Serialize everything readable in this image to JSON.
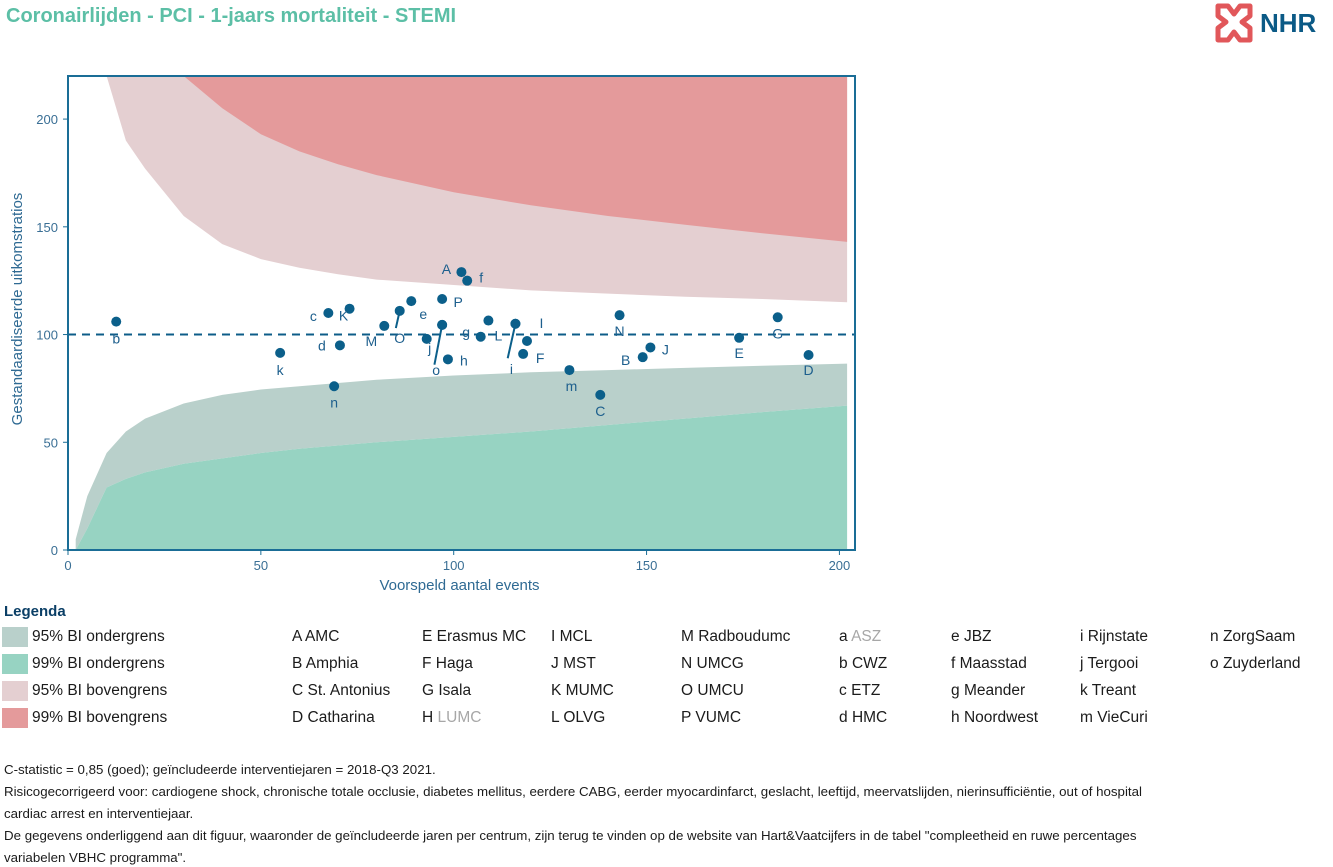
{
  "title": "Coronairlijden - PCI - 1-jaars mortaliteit - STEMI",
  "logo": {
    "text": "NHR",
    "icon": "nhr-cross-logo-icon",
    "color": "#e1575a"
  },
  "colors": {
    "ci95_lower": "#b9d0cb",
    "ci99_lower": "#97d3c2",
    "ci95_upper": "#e4cfd1",
    "ci99_upper": "#e49a9b",
    "points": "#0b5f8a",
    "axis": "#1a6d96",
    "title": "#5cbfa6"
  },
  "chart_data": {
    "type": "scatter",
    "xlabel": "Voorspeld aantal events",
    "ylabel": "Gestandaardiseerde uitkomstratios",
    "xlim": [
      0,
      202
    ],
    "ylim": [
      0,
      220
    ],
    "xticks": [
      0,
      50,
      100,
      150,
      200
    ],
    "yticks": [
      0,
      50,
      100,
      150,
      200
    ],
    "reference_line": 100,
    "bands": {
      "x": [
        2,
        5,
        10,
        15,
        20,
        30,
        40,
        50,
        60,
        70,
        80,
        100,
        120,
        140,
        160,
        180,
        202
      ],
      "ci95_lower": [
        5,
        25,
        45,
        55,
        61,
        68,
        72,
        74.5,
        76,
        77.5,
        79,
        81,
        82.5,
        83.5,
        84.5,
        85.5,
        86.5
      ],
      "ci99_lower": [
        0,
        10,
        29,
        33,
        36,
        40,
        42.5,
        45,
        47,
        48.5,
        50,
        52.5,
        55,
        58,
        61,
        64,
        67
      ],
      "ci95_upper": [
        220,
        220,
        220,
        190,
        177,
        155,
        142,
        135,
        131,
        128,
        125.5,
        123,
        120.5,
        119,
        117.5,
        116.5,
        115
      ],
      "ci99_upper": [
        null,
        null,
        null,
        null,
        null,
        220,
        205,
        193,
        185,
        179,
        174,
        166,
        160,
        155,
        151,
        147,
        143
      ]
    },
    "points": [
      {
        "label": "A",
        "x": 102,
        "y": 129,
        "lx": -15,
        "ly": 2
      },
      {
        "label": "f",
        "x": 103.5,
        "y": 125,
        "lx": 14,
        "ly": 2
      },
      {
        "label": "P",
        "x": 97,
        "y": 116.5,
        "lx": 16,
        "ly": 8
      },
      {
        "label": "e",
        "x": 89,
        "y": 115.5,
        "lx": 12,
        "ly": 18
      },
      {
        "label": "K",
        "x": 73,
        "y": 112,
        "lx": -6,
        "ly": 12
      },
      {
        "label": "c",
        "x": 67.5,
        "y": 110,
        "lx": -15,
        "ly": 8
      },
      {
        "label": "b",
        "x": 12.5,
        "y": 106,
        "lx": 0,
        "ly": 22
      },
      {
        "label": "O",
        "x": 86,
        "y": 111,
        "lx": 0,
        "ly": 32,
        "leader": [
          85,
          103
        ]
      },
      {
        "label": "M",
        "x": 82,
        "y": 104,
        "lx": -13,
        "ly": 20
      },
      {
        "label": "N",
        "x": 143,
        "y": 109,
        "lx": 0,
        "ly": 21
      },
      {
        "label": "G",
        "x": 184,
        "y": 108,
        "lx": 0,
        "ly": 21
      },
      {
        "label": "g",
        "x": 97,
        "y": 104.5,
        "lx": 24,
        "ly": 12
      },
      {
        "label": "j",
        "x": 93,
        "y": 98,
        "lx": 3,
        "ly": 14
      },
      {
        "label": "o",
        "x": 97,
        "y": 104.5,
        "lx": -6,
        "ly": 50,
        "leader": [
          95,
          86
        ]
      },
      {
        "label": "L",
        "x": 109,
        "y": 106.5,
        "lx": 10,
        "ly": 20
      },
      {
        "label": "l",
        "x": 107,
        "y": 99,
        "lx": 0,
        "ly": 0,
        "hidden_label": true
      },
      {
        "label": "I",
        "x": 116,
        "y": 105,
        "lx": 26,
        "ly": 4
      },
      {
        "label": "i",
        "x": 116,
        "y": 105,
        "lx": -4,
        "ly": 50,
        "leader": [
          114,
          89
        ]
      },
      {
        "label": "d",
        "x": 70.5,
        "y": 95,
        "lx": -18,
        "ly": 5
      },
      {
        "label": "F",
        "x": 118,
        "y": 91,
        "lx": 17,
        "ly": 9
      },
      {
        "label": "h",
        "x": 98.5,
        "y": 88.5,
        "lx": 16,
        "ly": 6
      },
      {
        "label": "E2",
        "x": 119,
        "y": 97,
        "lx": 0,
        "ly": 0,
        "hidden_label": true
      },
      {
        "label": "B",
        "x": 149,
        "y": 89.5,
        "lx": -17,
        "ly": 8
      },
      {
        "label": "J",
        "x": 151,
        "y": 94,
        "lx": 15,
        "ly": 7
      },
      {
        "label": "E",
        "x": 174,
        "y": 98.5,
        "lx": 0,
        "ly": 20
      },
      {
        "label": "D",
        "x": 192,
        "y": 90.5,
        "lx": 0,
        "ly": 20
      },
      {
        "label": "k",
        "x": 55,
        "y": 91.5,
        "lx": 0,
        "ly": 22
      },
      {
        "label": "m",
        "x": 130,
        "y": 83.5,
        "lx": 2,
        "ly": 21
      },
      {
        "label": "n",
        "x": 69,
        "y": 76,
        "lx": 0,
        "ly": 21
      },
      {
        "label": "C",
        "x": 138,
        "y": 72,
        "lx": 0,
        "ly": 21
      }
    ]
  },
  "legend": {
    "title": "Legenda",
    "bands": [
      {
        "label": "95% BI ondergrens",
        "color": "#b9d0cb"
      },
      {
        "label": "99% BI ondergrens",
        "color": "#97d3c2"
      },
      {
        "label": "95% BI bovengrens",
        "color": "#e4cfd1"
      },
      {
        "label": "99% BI bovengrens",
        "color": "#e49a9b"
      }
    ],
    "columns": [
      [
        {
          "code": "A",
          "name": "AMC"
        },
        {
          "code": "B",
          "name": "Amphia"
        },
        {
          "code": "C",
          "name": "St. Antonius"
        },
        {
          "code": "D",
          "name": "Catharina"
        }
      ],
      [
        {
          "code": "E",
          "name": "Erasmus MC"
        },
        {
          "code": "F",
          "name": "Haga"
        },
        {
          "code": "G",
          "name": "Isala"
        },
        {
          "code": "H",
          "name": "LUMC",
          "muted": true
        }
      ],
      [
        {
          "code": "I",
          "name": "MCL"
        },
        {
          "code": "J",
          "name": "MST"
        },
        {
          "code": "K",
          "name": "MUMC"
        },
        {
          "code": "L",
          "name": "OLVG"
        }
      ],
      [
        {
          "code": "M",
          "name": "Radboudumc"
        },
        {
          "code": "N",
          "name": "UMCG"
        },
        {
          "code": "O",
          "name": "UMCU"
        },
        {
          "code": "P",
          "name": "VUMC"
        }
      ],
      [
        {
          "code": "a",
          "name": "ASZ",
          "muted": true
        },
        {
          "code": "b",
          "name": "CWZ"
        },
        {
          "code": "c",
          "name": "ETZ"
        },
        {
          "code": "d",
          "name": "HMC"
        }
      ],
      [
        {
          "code": "e",
          "name": "JBZ"
        },
        {
          "code": "f",
          "name": "Maasstad"
        },
        {
          "code": "g",
          "name": "Meander"
        },
        {
          "code": "h",
          "name": "Noordwest"
        }
      ],
      [
        {
          "code": "i",
          "name": "Rijnstate"
        },
        {
          "code": "j",
          "name": "Tergooi"
        },
        {
          "code": "k",
          "name": "Treant"
        },
        {
          "code": "m",
          "name": "VieCuri"
        }
      ],
      [
        {
          "code": "n",
          "name": "ZorgSaam"
        },
        {
          "code": "o",
          "name": "Zuyderland"
        }
      ]
    ]
  },
  "footer": {
    "line1": "C-statistic =  0,85 (goed); geïncludeerde interventiejaren = 2018-Q3 2021.",
    "line2": "Risicogecorrigeerd voor: cardiogene shock, chronische totale occlusie, diabetes mellitus, eerdere CABG, eerder myocardinfarct, geslacht, leeftijd, meervatslijden, nierinsufficiëntie, out of hospital",
    "line3": "cardiac arrest en interventiejaar.",
    "line4": "De gegevens onderliggend aan dit figuur, waaronder de geïncludeerde jaren per centrum, zijn terug te vinden op de website van Hart&Vaatcijfers in de tabel \"compleetheid en ruwe percentages",
    "line5": "variabelen VBHC programma\"."
  }
}
